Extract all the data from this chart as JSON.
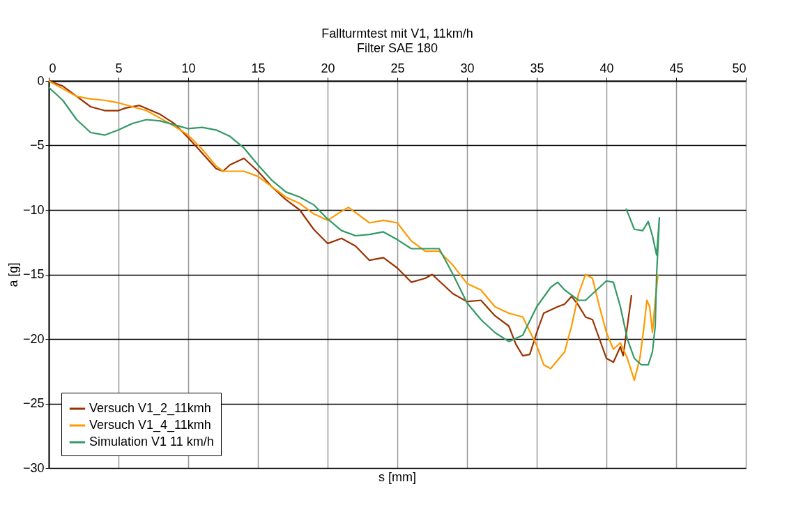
{
  "chart_data": {
    "type": "line",
    "title": "Fallturmtest mit V1, 11km/h",
    "subtitle": "Filter SAE 180",
    "xlabel": "s [mm]",
    "ylabel": "a [g]",
    "xlim": [
      0,
      50
    ],
    "xticks": [
      0,
      5,
      10,
      15,
      20,
      25,
      30,
      35,
      40,
      45,
      50
    ],
    "ylim": [
      -30,
      0
    ],
    "yticks": [
      -30,
      -25,
      -20,
      -15,
      -10,
      -5,
      0
    ],
    "grid": true,
    "legend": "bottom left",
    "marker": "none",
    "line_style": "solid",
    "series": [
      {
        "name": "Versuch V1_2_11kmh",
        "color": "#993300",
        "x": [
          0,
          1,
          2,
          3,
          4,
          5,
          5.5,
          6.5,
          8,
          9,
          10,
          11,
          12,
          12.5,
          13,
          14,
          15,
          16,
          17,
          18,
          19,
          20,
          21,
          22,
          23,
          24,
          25,
          26,
          27,
          27.5,
          28,
          29,
          30,
          31,
          32,
          33,
          33.5,
          34,
          34.5,
          35,
          35.5,
          36.5,
          37,
          37.5,
          38,
          38.5,
          39,
          39.5,
          40,
          40.5,
          41,
          41.2,
          41.5,
          41.8
        ],
        "values": [
          0,
          -0.4,
          -1.2,
          -2,
          -2.3,
          -2.3,
          -2.1,
          -1.9,
          -2.6,
          -3.3,
          -4.4,
          -5.6,
          -6.8,
          -7,
          -6.5,
          -6,
          -7,
          -8.2,
          -9.2,
          -10,
          -11.5,
          -12.6,
          -12.2,
          -12.8,
          -13.9,
          -13.7,
          -14.5,
          -15.6,
          -15.3,
          -15,
          -15.5,
          -16.5,
          -17.1,
          -17,
          -18.2,
          -19,
          -20.4,
          -21.3,
          -21.2,
          -19.5,
          -18,
          -17.5,
          -17.3,
          -16.7,
          -17.4,
          -18.3,
          -18.5,
          -20,
          -21.5,
          -21.8,
          -20.6,
          -21.3,
          -19,
          -16.6
        ]
      },
      {
        "name": "Versuch V1_4_11kmh",
        "color": "#ff9900",
        "x": [
          0,
          1,
          2,
          3,
          4,
          5,
          6,
          7,
          8,
          9,
          10,
          11,
          12,
          12.5,
          13,
          14,
          15,
          16,
          17,
          18,
          19,
          20,
          21,
          21.5,
          22,
          23,
          24,
          25,
          26,
          27,
          28,
          29,
          30,
          31,
          32,
          33,
          34,
          35,
          35.5,
          36,
          37,
          37.5,
          38,
          38.5,
          39,
          39.5,
          40,
          40.5,
          41,
          41.5,
          42,
          42.4,
          42.7,
          42.9,
          43.1,
          43.3,
          43.5,
          43.7
        ],
        "values": [
          0,
          -0.6,
          -1.2,
          -1.4,
          -1.5,
          -1.7,
          -2,
          -2.3,
          -2.9,
          -3.5,
          -4.2,
          -5.3,
          -6.6,
          -7,
          -7,
          -7,
          -7.4,
          -8.2,
          -9,
          -9.5,
          -10.3,
          -10.8,
          -10.1,
          -9.8,
          -10.2,
          -11,
          -10.8,
          -11,
          -12.4,
          -13.2,
          -13.2,
          -14.3,
          -15.7,
          -16.2,
          -17.5,
          -18,
          -18.3,
          -20.5,
          -22,
          -22.3,
          -21,
          -19,
          -16.5,
          -15,
          -15.3,
          -17.5,
          -19.5,
          -20.8,
          -20.3,
          -21.5,
          -23.2,
          -21.5,
          -19,
          -17,
          -17.5,
          -19.5,
          -17,
          -15
        ]
      },
      {
        "name": "Simulation V1 11 km/h",
        "color": "#339966",
        "x": [
          0,
          1,
          2,
          3,
          4,
          5,
          6,
          7,
          8,
          9,
          10,
          11,
          12,
          13,
          14,
          15,
          16,
          17,
          18,
          19,
          20,
          21,
          22,
          23,
          24,
          25,
          26,
          27,
          28,
          29,
          30,
          31,
          32,
          33,
          34,
          35,
          36,
          36.5,
          37,
          38,
          38.5,
          39,
          40,
          40.5,
          41,
          41.5,
          42,
          42.5,
          43,
          43.3,
          43.5,
          43.6,
          43.8,
          43.6,
          43.3,
          43,
          42.6,
          42,
          41.6,
          41.4
        ],
        "values": [
          -0.5,
          -1.5,
          -3,
          -4,
          -4.2,
          -3.8,
          -3.3,
          -3,
          -3.1,
          -3.4,
          -3.7,
          -3.6,
          -3.8,
          -4.3,
          -5.2,
          -6.5,
          -7.7,
          -8.6,
          -9,
          -9.6,
          -10.7,
          -11.6,
          -12,
          -11.9,
          -11.7,
          -12.3,
          -13,
          -13,
          -13,
          -15,
          -17.2,
          -18.5,
          -19.5,
          -20.2,
          -19.7,
          -17.5,
          -16,
          -15.6,
          -16.2,
          -17,
          -17,
          -16.5,
          -15.5,
          -15.6,
          -17.5,
          -20,
          -21.5,
          -22,
          -22,
          -21,
          -19,
          -15,
          -10.6,
          -13.5,
          -12,
          -10.9,
          -11.6,
          -11.5,
          -10.4,
          -9.9
        ]
      }
    ]
  }
}
